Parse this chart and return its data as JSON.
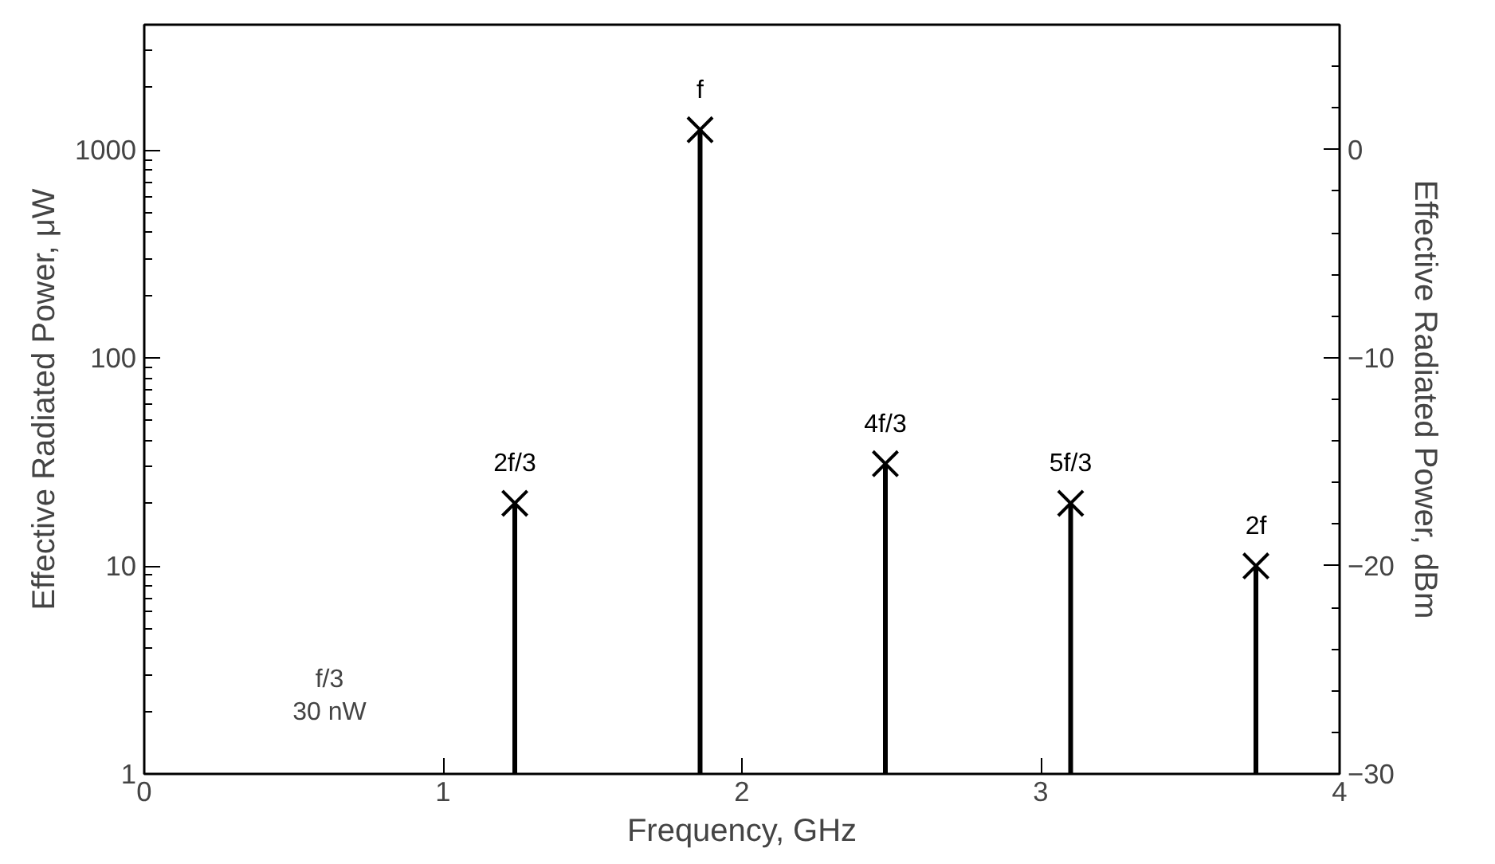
{
  "chart_data": {
    "type": "lollipop",
    "xlabel": "Frequency, GHz",
    "ylabel": "Effective Radiated Power, μW",
    "y2label": "Effective Radiated Power, dBm",
    "x": [
      1.24,
      1.86,
      2.48,
      3.1,
      3.72
    ],
    "series": [
      {
        "color": "#000000",
        "values": [
          20,
          1250,
          31,
          20,
          10
        ]
      }
    ],
    "marker": "cross",
    "log": "y",
    "grid": false,
    "xlim": [
      0,
      4
    ],
    "xticks": [
      0,
      1,
      2,
      3,
      4
    ],
    "ylim": [
      1,
      4000
    ],
    "yticks": [
      1,
      10,
      100,
      1000
    ],
    "y2lim": [
      -30,
      6
    ],
    "y2ticks": [
      -30,
      -20,
      -10,
      0
    ],
    "annotations": [
      {
        "text": "2f/3",
        "x": 1.24,
        "y": 20
      },
      {
        "text": "f",
        "x": 1.86,
        "y": 1250
      },
      {
        "text": "4f/3",
        "x": 2.48,
        "y": 31
      },
      {
        "text": "5f/3",
        "x": 3.1,
        "y": 20
      },
      {
        "text": "2f",
        "x": 3.72,
        "y": 10
      },
      "f/3\n30 nW"
    ]
  }
}
